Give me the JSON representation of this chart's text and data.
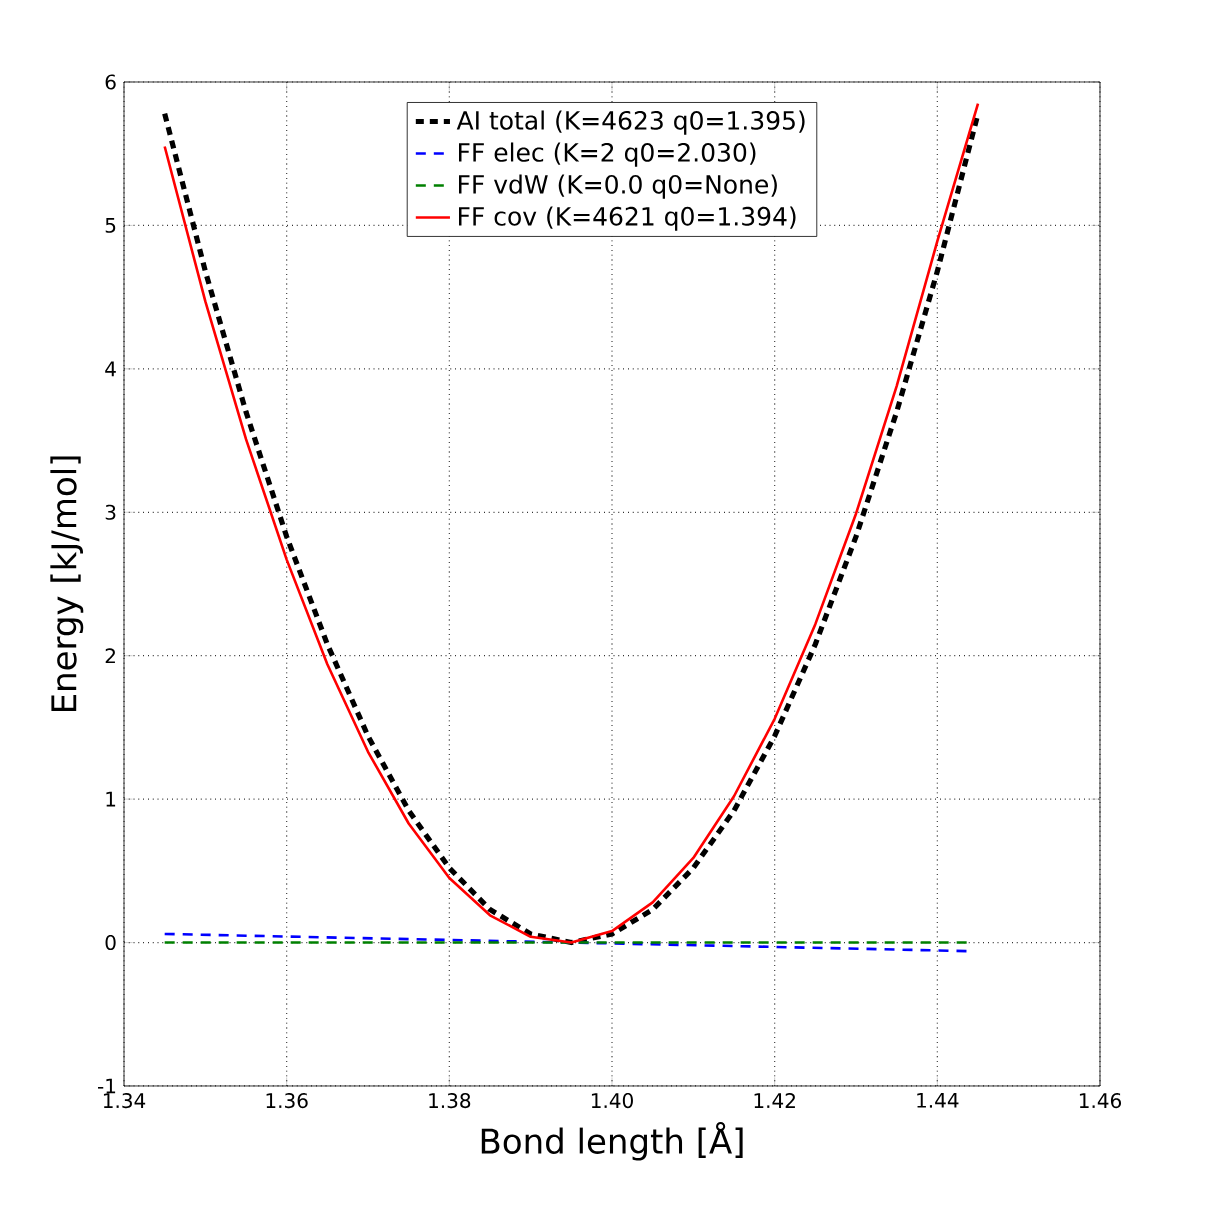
{
  "chart_data": {
    "type": "line",
    "xlabel": "Bond length [Å]",
    "ylabel": "Energy [kJ/mol]",
    "xlim": [
      1.34,
      1.46
    ],
    "ylim": [
      -1,
      6
    ],
    "xticks": [
      1.34,
      1.36,
      1.38,
      {
        "value": 1.4,
        "label": "1.40"
      },
      1.42,
      1.44,
      1.46
    ],
    "yticks": [
      -1,
      0,
      1,
      2,
      3,
      4,
      5,
      6
    ],
    "grid": true,
    "legend": "top",
    "marker": "none",
    "x": [
      1.345,
      1.35,
      1.355,
      1.36,
      1.365,
      1.37,
      1.375,
      1.38,
      1.385,
      1.39,
      1.395,
      1.4,
      1.405,
      1.41,
      1.415,
      1.42,
      1.425,
      1.43,
      1.435,
      1.44,
      1.445
    ],
    "series": [
      {
        "name": "AI total (K=4623 q0=1.395)",
        "color": "#000000",
        "line_style": "dashed",
        "values": [
          5.78,
          4.68,
          3.7,
          2.83,
          2.08,
          1.44,
          0.92,
          0.52,
          0.23,
          0.06,
          0,
          0.06,
          0.23,
          0.52,
          0.92,
          1.44,
          2.08,
          2.83,
          3.7,
          4.68,
          5.78
        ]
      },
      {
        "name": "FF elec  (K=2 q0=2.030)",
        "color": "#0000ff",
        "line_style": "dashed",
        "x": [
          1.345,
          1.395,
          1.444
        ],
        "values": [
          0.06,
          0,
          -0.06
        ]
      },
      {
        "name": "FF vdW   (K=0.0 q0=None)",
        "color": "#008000",
        "line_style": "dashed",
        "x": [
          1.345,
          1.395,
          1.444
        ],
        "values": [
          0,
          0,
          0
        ]
      },
      {
        "name": "FF cov   (K=4621 q0=1.394)",
        "color": "#ff0000",
        "line_style": "solid",
        "values": [
          5.55,
          4.47,
          3.51,
          2.67,
          1.94,
          1.33,
          0.83,
          0.45,
          0.19,
          0.04,
          0,
          0.08,
          0.28,
          0.59,
          1.02,
          1.56,
          2.22,
          2.99,
          3.88,
          4.89,
          5.85
        ]
      }
    ]
  }
}
